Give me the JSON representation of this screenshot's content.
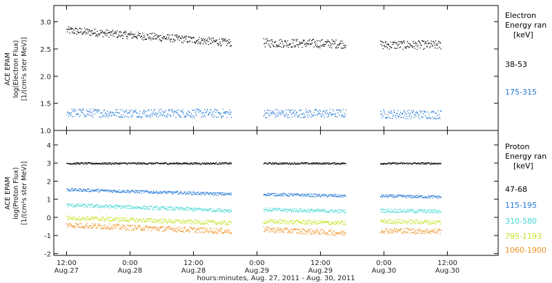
{
  "chart_data": [
    {
      "type": "scatter",
      "panel": "electron",
      "ylabel": [
        "ACE EPAM",
        "log(Electron Flux)",
        "[1/(cm²s ster MeV)]"
      ],
      "ylim": [
        1.0,
        3.3
      ],
      "yticks": [
        "1.0",
        "1.5",
        "2.0",
        "2.5",
        "3.0"
      ],
      "ytick_values": [
        1.0,
        1.5,
        2.0,
        2.5,
        3.0
      ],
      "legend": {
        "title": [
          "Electron",
          "Energy ran",
          "[keV]"
        ]
      },
      "series": [
        {
          "name": "38-53",
          "color": "#000000",
          "segments": [
            {
              "x": [
                0.0,
                1.3
              ],
              "y_start": 2.85,
              "y_end": 2.62,
              "spread": 0.07
            },
            {
              "x": [
                1.55,
                2.2
              ],
              "y_start": 2.62,
              "y_end": 2.6,
              "spread": 0.08
            },
            {
              "x": [
                2.47,
                2.95
              ],
              "y_start": 2.58,
              "y_end": 2.58,
              "spread": 0.08
            }
          ]
        },
        {
          "name": "175-315",
          "color": "#1f77d4",
          "segments": [
            {
              "x": [
                0.0,
                1.3
              ],
              "y_start": 1.33,
              "y_end": 1.32,
              "spread": 0.08
            },
            {
              "x": [
                1.55,
                2.2
              ],
              "y_start": 1.32,
              "y_end": 1.32,
              "spread": 0.08
            },
            {
              "x": [
                2.47,
                2.95
              ],
              "y_start": 1.31,
              "y_end": 1.3,
              "spread": 0.08
            }
          ]
        }
      ]
    },
    {
      "type": "scatter",
      "panel": "proton",
      "ylabel": [
        "ACE EPAM",
        "log(Proton Flux)",
        "[1/(cm²s ster MeV)]"
      ],
      "ylim": [
        -2.1,
        4.8
      ],
      "yticks": [
        "-2",
        "-1",
        "0",
        "1",
        "2",
        "3",
        "4"
      ],
      "ytick_values": [
        -2,
        -1,
        0,
        1,
        2,
        3,
        4
      ],
      "legend": {
        "title": [
          "Proton",
          "Energy ran",
          "[keV]"
        ]
      },
      "series": [
        {
          "name": "47-68",
          "color": "#000000",
          "segments": [
            {
              "x": [
                0.0,
                1.3
              ],
              "y_start": 3.0,
              "y_end": 3.0,
              "spread": 0.05
            },
            {
              "x": [
                1.55,
                2.2
              ],
              "y_start": 3.0,
              "y_end": 3.0,
              "spread": 0.05
            },
            {
              "x": [
                2.47,
                2.95
              ],
              "y_start": 3.0,
              "y_end": 3.0,
              "spread": 0.05
            }
          ]
        },
        {
          "name": "115-195",
          "color": "#1f77d4",
          "segments": [
            {
              "x": [
                0.0,
                1.3
              ],
              "y_start": 1.55,
              "y_end": 1.3,
              "spread": 0.08
            },
            {
              "x": [
                1.55,
                2.2
              ],
              "y_start": 1.3,
              "y_end": 1.2,
              "spread": 0.08
            },
            {
              "x": [
                2.47,
                2.95
              ],
              "y_start": 1.2,
              "y_end": 1.15,
              "spread": 0.08
            }
          ]
        },
        {
          "name": "310-580",
          "color": "#40d8d0",
          "segments": [
            {
              "x": [
                0.0,
                1.3
              ],
              "y_start": 0.7,
              "y_end": 0.4,
              "spread": 0.1
            },
            {
              "x": [
                1.55,
                2.2
              ],
              "y_start": 0.45,
              "y_end": 0.35,
              "spread": 0.1
            },
            {
              "x": [
                2.47,
                2.95
              ],
              "y_start": 0.4,
              "y_end": 0.35,
              "spread": 0.1
            }
          ]
        },
        {
          "name": "795-1193",
          "color": "#c8e020",
          "segments": [
            {
              "x": [
                0.0,
                1.3
              ],
              "y_start": 0.0,
              "y_end": -0.3,
              "spread": 0.12
            },
            {
              "x": [
                1.55,
                2.2
              ],
              "y_start": -0.2,
              "y_end": -0.3,
              "spread": 0.12
            },
            {
              "x": [
                2.47,
                2.95
              ],
              "y_start": -0.2,
              "y_end": -0.25,
              "spread": 0.12
            }
          ]
        },
        {
          "name": "1060-1900",
          "color": "#f0901e",
          "segments": [
            {
              "x": [
                0.0,
                1.3
              ],
              "y_start": -0.4,
              "y_end": -0.75,
              "spread": 0.15
            },
            {
              "x": [
                1.55,
                2.2
              ],
              "y_start": -0.65,
              "y_end": -0.85,
              "spread": 0.15
            },
            {
              "x": [
                2.47,
                2.95
              ],
              "y_start": -0.7,
              "y_end": -0.75,
              "spread": 0.15
            }
          ]
        }
      ]
    }
  ],
  "x_axis": {
    "label": "hours:minutes, Aug. 27, 2011 - Aug. 30, 2011",
    "range_days": [
      -0.1,
      3.4
    ],
    "ticks": [
      {
        "d": 0.0,
        "top": "12:00",
        "bottom": "Aug.27"
      },
      {
        "d": 0.5,
        "top": "0:00",
        "bottom": "Aug.28"
      },
      {
        "d": 1.0,
        "top": "12:00",
        "bottom": "Aug.28"
      },
      {
        "d": 1.5,
        "top": "0:00",
        "bottom": "Aug.29"
      },
      {
        "d": 2.0,
        "top": "12:00",
        "bottom": "Aug.29"
      },
      {
        "d": 2.5,
        "top": "0:00",
        "bottom": "Aug.30"
      },
      {
        "d": 3.0,
        "top": "12:00",
        "bottom": "Aug.30"
      }
    ]
  }
}
